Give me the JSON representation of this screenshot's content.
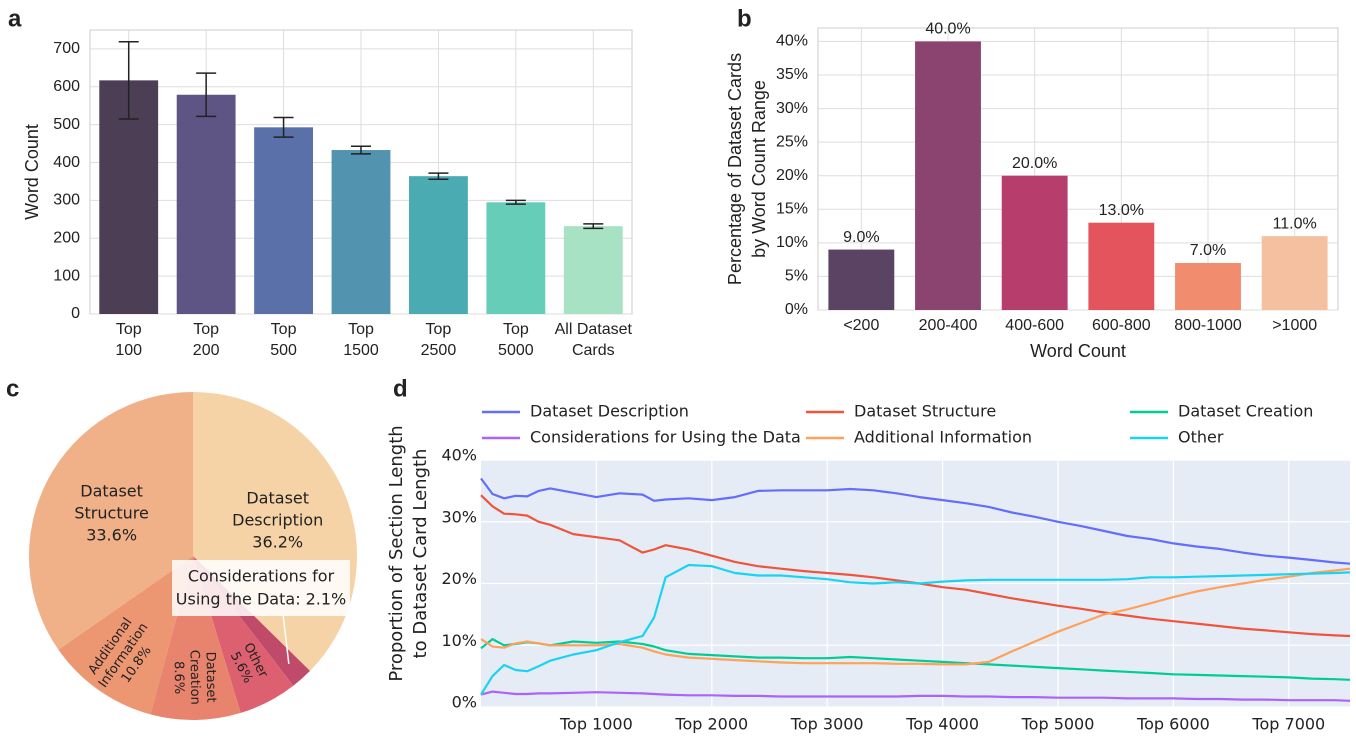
{
  "chart_data": [
    {
      "type": "bar",
      "panel": "a",
      "ylabel": "Word Count",
      "categories": [
        [
          "Top",
          "100"
        ],
        [
          "Top",
          "200"
        ],
        [
          "Top",
          "500"
        ],
        [
          "Top",
          "1500"
        ],
        [
          "Top",
          "2500"
        ],
        [
          "Top",
          "5000"
        ],
        [
          "All Dataset",
          "Cards"
        ]
      ],
      "values": [
        617,
        579,
        493,
        433,
        364,
        295,
        232
      ],
      "errors": [
        102,
        57,
        26,
        10,
        8,
        5,
        6
      ],
      "colors": [
        "#4b3e55",
        "#5f5585",
        "#5a70a8",
        "#5293b0",
        "#4aabb2",
        "#66cdb8",
        "#a8e2c4"
      ],
      "ylim": [
        0,
        750
      ],
      "yticks": [
        0,
        100,
        200,
        300,
        400,
        500,
        600,
        700
      ],
      "grid": true
    },
    {
      "type": "bar",
      "panel": "b",
      "ylabel": [
        "Percentage of Dataset Cards",
        "by Word Count Range"
      ],
      "xlabel": "Word Count",
      "categories": [
        "<200",
        "200-400",
        "400-600",
        "600-800",
        "800-1000",
        ">1000"
      ],
      "values": [
        9,
        40,
        20,
        13,
        7,
        11
      ],
      "value_labels": [
        "9.0%",
        "40.0%",
        "20.0%",
        "13.0%",
        "7.0%",
        "11.0%"
      ],
      "colors": [
        "#5b4463",
        "#8a446f",
        "#b73d6c",
        "#e3545c",
        "#f28c6e",
        "#f4c09f"
      ],
      "ylim": [
        0,
        42
      ],
      "yticks": [
        {
          "value": 0,
          "label": "0%"
        },
        {
          "value": 5,
          "label": "5%"
        },
        {
          "value": 10,
          "label": "10%"
        },
        {
          "value": 15,
          "label": "15%"
        },
        {
          "value": 20,
          "label": "20%"
        },
        {
          "value": 25,
          "label": "25%"
        },
        {
          "value": 30,
          "label": "30%"
        },
        {
          "value": 35,
          "label": "35%"
        },
        {
          "value": 40,
          "label": "40%"
        }
      ],
      "grid": true
    },
    {
      "type": "pie",
      "panel": "c",
      "labels": [
        [
          "Dataset",
          "Description"
        ],
        [
          "Considerations for",
          "Using the Data:"
        ],
        [
          "Other"
        ],
        [
          "Dataset",
          "Creation"
        ],
        [
          "Additional",
          "Information"
        ],
        [
          "Dataset",
          "Structure"
        ]
      ],
      "values": [
        36.2,
        2.1,
        5.6,
        8.6,
        10.8,
        33.6
      ],
      "value_labels": [
        "36.2%",
        "2.1%",
        "5.6%",
        "8.6%",
        "10.8%",
        "33.6%"
      ],
      "colors": [
        "#f5d3a6",
        "#c04a6a",
        "#dd6070",
        "#e8836e",
        "#ec9672",
        "#f0b088"
      ]
    },
    {
      "type": "line",
      "panel": "d",
      "ylabel": [
        "Proportion of Section Length",
        "to Dataset Card Length"
      ],
      "x": [
        0,
        100,
        200,
        300,
        400,
        500,
        600,
        800,
        1000,
        1200,
        1400,
        1500,
        1600,
        1800,
        2000,
        2200,
        2400,
        2600,
        2800,
        3000,
        3200,
        3400,
        3600,
        3800,
        4000,
        4200,
        4400,
        4600,
        4800,
        5000,
        5200,
        5400,
        5600,
        5800,
        6000,
        6200,
        6400,
        6600,
        6800,
        7000,
        7200,
        7400,
        7530
      ],
      "series": [
        {
          "name": "Dataset Description",
          "color": "#636efa",
          "values": [
            37,
            34.5,
            33.8,
            34.2,
            34.1,
            35.0,
            35.4,
            34.7,
            34.0,
            34.6,
            34.4,
            33.4,
            33.6,
            33.8,
            33.5,
            34.0,
            35.0,
            35.1,
            35.1,
            35.1,
            35.3,
            35.1,
            34.6,
            34.0,
            33.5,
            33.0,
            32.4,
            31.5,
            30.8,
            30.0,
            29.3,
            28.5,
            27.7,
            27.2,
            26.5,
            26.0,
            25.6,
            25.0,
            24.5,
            24.2,
            23.8,
            23.4,
            23.2
          ]
        },
        {
          "name": "Dataset Structure",
          "color": "#ef553b",
          "values": [
            34.3,
            32.5,
            31.3,
            31.2,
            31.0,
            30.0,
            29.5,
            28.0,
            27.5,
            27.0,
            25.0,
            25.5,
            26.2,
            25.5,
            24.5,
            23.5,
            22.8,
            22.4,
            22.0,
            21.7,
            21.4,
            21.0,
            20.5,
            20.0,
            19.4,
            19.0,
            18.3,
            17.6,
            17.0,
            16.4,
            15.9,
            15.3,
            14.8,
            14.3,
            13.9,
            13.5,
            13.1,
            12.7,
            12.4,
            12.1,
            11.8,
            11.6,
            11.5
          ]
        },
        {
          "name": "Dataset Creation",
          "color": "#00cc96",
          "values": [
            9.5,
            11.0,
            10.0,
            10.2,
            10.5,
            10.3,
            10.0,
            10.6,
            10.4,
            10.6,
            10.2,
            9.8,
            9.2,
            8.6,
            8.4,
            8.2,
            8.0,
            8.0,
            7.9,
            7.9,
            8.1,
            7.9,
            7.7,
            7.5,
            7.3,
            7.1,
            6.9,
            6.7,
            6.5,
            6.3,
            6.1,
            5.9,
            5.7,
            5.5,
            5.3,
            5.2,
            5.1,
            5.0,
            4.9,
            4.8,
            4.6,
            4.5,
            4.4
          ]
        },
        {
          "name": "Considerations for Using the Data",
          "color": "#ab63fa",
          "values": [
            2.0,
            2.5,
            2.3,
            2.1,
            2.1,
            2.2,
            2.2,
            2.3,
            2.4,
            2.3,
            2.2,
            2.1,
            2.0,
            1.9,
            1.9,
            1.8,
            1.8,
            1.7,
            1.7,
            1.7,
            1.7,
            1.7,
            1.7,
            1.8,
            1.8,
            1.7,
            1.7,
            1.6,
            1.6,
            1.5,
            1.5,
            1.5,
            1.4,
            1.4,
            1.4,
            1.3,
            1.3,
            1.2,
            1.2,
            1.1,
            1.1,
            1.1,
            1.0
          ]
        },
        {
          "name": "Additional Information",
          "color": "#ffa15a",
          "values": [
            11.0,
            9.8,
            9.6,
            10.3,
            10.6,
            10.3,
            10.0,
            10.0,
            10.0,
            10.2,
            9.6,
            9.0,
            8.5,
            8.0,
            7.8,
            7.6,
            7.4,
            7.2,
            7.1,
            7.1,
            7.1,
            7.1,
            7.0,
            7.0,
            6.9,
            6.9,
            7.3,
            9.0,
            10.6,
            12.2,
            13.6,
            15.0,
            15.8,
            16.8,
            17.8,
            18.7,
            19.4,
            20.0,
            20.6,
            21.1,
            21.7,
            22.1,
            22.4
          ]
        },
        {
          "name": "Other",
          "color": "#19d3f3",
          "values": [
            2.0,
            5.0,
            6.8,
            6.0,
            5.8,
            6.6,
            7.5,
            8.5,
            9.2,
            10.5,
            11.5,
            14.5,
            21.0,
            23.0,
            22.8,
            21.7,
            21.3,
            21.3,
            21.0,
            20.7,
            20.2,
            20.0,
            20.2,
            20.0,
            20.3,
            20.5,
            20.6,
            20.6,
            20.6,
            20.6,
            20.6,
            20.6,
            20.7,
            21.0,
            21.0,
            21.1,
            21.2,
            21.3,
            21.4,
            21.5,
            21.6,
            21.7,
            21.8
          ]
        }
      ],
      "xlim": [
        0,
        7530
      ],
      "ylim": [
        0,
        40
      ],
      "xticks": [
        {
          "value": 1000,
          "label": "Top 1000"
        },
        {
          "value": 2000,
          "label": "Top 2000"
        },
        {
          "value": 3000,
          "label": "Top 3000"
        },
        {
          "value": 4000,
          "label": "Top 4000"
        },
        {
          "value": 5000,
          "label": "Top 5000"
        },
        {
          "value": 6000,
          "label": "Top 6000"
        },
        {
          "value": 7000,
          "label": "Top 7000"
        }
      ],
      "yticks": [
        {
          "value": 0,
          "label": "0%"
        },
        {
          "value": 10,
          "label": "10%"
        },
        {
          "value": 20,
          "label": "20%"
        },
        {
          "value": 30,
          "label": "30%"
        },
        {
          "value": 40,
          "label": "40%"
        }
      ],
      "grid": true,
      "legend": "top"
    }
  ]
}
